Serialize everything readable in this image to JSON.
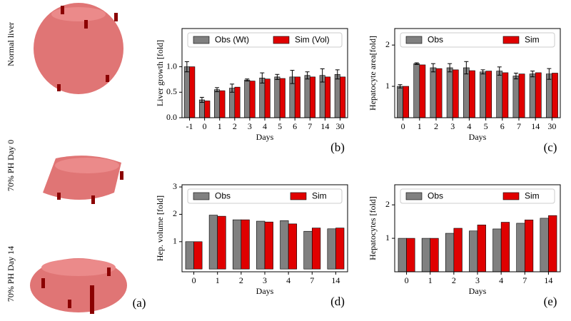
{
  "panel_a": {
    "labels": [
      "Normal liver",
      "70% PH Day 0",
      "70% PH Day 14"
    ],
    "tag": "(a)"
  },
  "chart_data": [
    {
      "type": "bar",
      "ylabel": "Liver growth [fold]",
      "xlabel": "Days",
      "annotation": "(b)",
      "legend": "upper",
      "categories": [
        "-1",
        "0",
        "1",
        "2",
        "3",
        "4",
        "5",
        "6",
        "7",
        "14",
        "30"
      ],
      "series": [
        {
          "name": "Obs (Wt)",
          "color": "#808080",
          "values": [
            1.0,
            0.35,
            0.55,
            0.58,
            0.74,
            0.78,
            0.8,
            0.8,
            0.83,
            0.83,
            0.85
          ],
          "errors": [
            0.1,
            0.05,
            0.04,
            0.08,
            0.02,
            0.1,
            0.05,
            0.13,
            0.07,
            0.13,
            0.09
          ]
        },
        {
          "name": "Sim (Vol)",
          "color": "#e00000",
          "values": [
            1.0,
            0.33,
            0.53,
            0.6,
            0.72,
            0.76,
            0.77,
            0.8,
            0.8,
            0.8,
            0.8
          ]
        }
      ],
      "ylim": [
        0,
        1.75
      ],
      "yticks": [
        {
          "value": 0,
          "label": "0.0"
        },
        {
          "value": 0.5,
          "label": "0.5"
        },
        {
          "value": 1,
          "label": "1.0"
        }
      ]
    },
    {
      "type": "bar",
      "ylabel": "Hepatocyte area[fold]",
      "xlabel": "Days",
      "annotation": "(c)",
      "legend": "upper",
      "categories": [
        "0",
        "1",
        "2",
        "3",
        "4",
        "5",
        "6",
        "7",
        "14",
        "30"
      ],
      "series": [
        {
          "name": "Obs",
          "color": "#808080",
          "values": [
            1.0,
            1.55,
            1.45,
            1.45,
            1.45,
            1.35,
            1.37,
            1.25,
            1.3,
            1.3
          ],
          "errors": [
            0.04,
            0.02,
            0.1,
            0.1,
            0.15,
            0.05,
            0.1,
            0.07,
            0.07,
            0.13
          ]
        },
        {
          "name": "Sim",
          "color": "#e00000",
          "values": [
            1.0,
            1.52,
            1.43,
            1.4,
            1.38,
            1.37,
            1.33,
            1.3,
            1.33,
            1.32
          ]
        }
      ],
      "ylim": [
        0.24,
        2.4
      ],
      "yticks": [
        1,
        2
      ]
    },
    {
      "type": "bar",
      "ylabel": "Hep. volume [fold]",
      "xlabel": "Days",
      "annotation": "(d)",
      "legend": "upper",
      "categories": [
        "0",
        "1",
        "2",
        "3",
        "4",
        "7",
        "14"
      ],
      "series": [
        {
          "name": "Obs",
          "color": "#808080",
          "values": [
            1.0,
            1.97,
            1.8,
            1.75,
            1.77,
            1.38,
            1.47
          ]
        },
        {
          "name": "Sim",
          "color": "#e00000",
          "values": [
            1.0,
            1.93,
            1.8,
            1.72,
            1.65,
            1.5,
            1.5
          ]
        }
      ],
      "ylim": [
        -0.1,
        3.08
      ],
      "yticks": [
        1,
        2,
        3
      ]
    },
    {
      "type": "bar",
      "ylabel": "Hepatocytes [fold]",
      "xlabel": "Days",
      "annotation": "(e)",
      "legend": "upper",
      "categories": [
        "0",
        "1",
        "2",
        "3",
        "4",
        "7",
        "14"
      ],
      "series": [
        {
          "name": "Obs",
          "color": "#808080",
          "values": [
            1.0,
            1.0,
            1.15,
            1.22,
            1.28,
            1.45,
            1.6
          ]
        },
        {
          "name": "Sim",
          "color": "#e00000",
          "values": [
            1.0,
            1.0,
            1.3,
            1.4,
            1.48,
            1.55,
            1.68
          ]
        }
      ],
      "ylim": [
        0,
        2.6
      ],
      "yticks": [
        1,
        2
      ]
    }
  ]
}
